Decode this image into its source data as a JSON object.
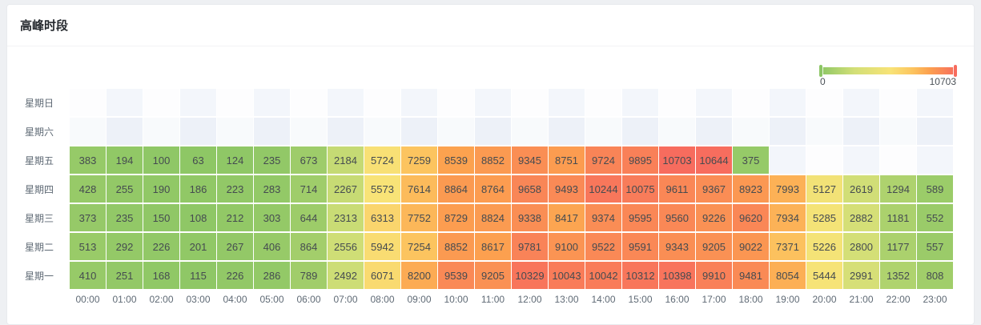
{
  "card": {
    "title": "高峰时段"
  },
  "chart_data": {
    "type": "heatmap",
    "title": "高峰时段",
    "x_labels": [
      "00:00",
      "01:00",
      "02:00",
      "03:00",
      "04:00",
      "05:00",
      "06:00",
      "07:00",
      "08:00",
      "09:00",
      "10:00",
      "11:00",
      "12:00",
      "13:00",
      "14:00",
      "15:00",
      "16:00",
      "17:00",
      "18:00",
      "19:00",
      "20:00",
      "21:00",
      "22:00",
      "23:00"
    ],
    "y_labels_top_to_bottom": [
      "星期日",
      "星期六",
      "星期五",
      "星期四",
      "星期三",
      "星期二",
      "星期一"
    ],
    "min": 0,
    "max": 10703,
    "legend": {
      "min_label": "0",
      "max_label": "10703",
      "position": "top-right"
    },
    "gradient_stops": [
      {
        "pos": 0,
        "color": "#8cc665"
      },
      {
        "pos": 0.25,
        "color": "#d2df77"
      },
      {
        "pos": 0.52,
        "color": "#f8e377"
      },
      {
        "pos": 0.68,
        "color": "#fcc45f"
      },
      {
        "pos": 0.8,
        "color": "#fca14f"
      },
      {
        "pos": 1,
        "color": "#f76c5e"
      }
    ],
    "rows": [
      {
        "day": "星期日",
        "values": [
          null,
          null,
          null,
          null,
          null,
          null,
          null,
          null,
          null,
          null,
          null,
          null,
          null,
          null,
          null,
          null,
          null,
          null,
          null,
          null,
          null,
          null,
          null,
          null
        ]
      },
      {
        "day": "星期六",
        "values": [
          null,
          null,
          null,
          null,
          null,
          null,
          null,
          null,
          null,
          null,
          null,
          null,
          null,
          null,
          null,
          null,
          null,
          null,
          null,
          null,
          null,
          null,
          null,
          null
        ]
      },
      {
        "day": "星期五",
        "values": [
          383,
          194,
          100,
          63,
          124,
          235,
          673,
          2184,
          5724,
          7259,
          8539,
          8852,
          9345,
          8751,
          9724,
          9895,
          10703,
          10644,
          375,
          null,
          null,
          null,
          null,
          null
        ]
      },
      {
        "day": "星期四",
        "values": [
          428,
          255,
          190,
          186,
          223,
          283,
          714,
          2267,
          5573,
          7614,
          8864,
          8764,
          9658,
          9493,
          10244,
          10075,
          9611,
          9367,
          8923,
          7993,
          5127,
          2619,
          1294,
          589
        ]
      },
      {
        "day": "星期三",
        "values": [
          373,
          235,
          150,
          108,
          212,
          303,
          644,
          2313,
          6313,
          7752,
          8729,
          8824,
          9338,
          8417,
          9374,
          9595,
          9560,
          9226,
          9620,
          7934,
          5285,
          2882,
          1181,
          552
        ]
      },
      {
        "day": "星期二",
        "values": [
          513,
          292,
          226,
          201,
          267,
          406,
          864,
          2556,
          5942,
          7254,
          8852,
          8617,
          9781,
          9100,
          9522,
          9591,
          9343,
          9205,
          9022,
          7371,
          5226,
          2800,
          1177,
          557
        ]
      },
      {
        "day": "星期一",
        "values": [
          410,
          251,
          168,
          115,
          226,
          286,
          789,
          2492,
          6071,
          8200,
          9539,
          9205,
          10329,
          10043,
          10042,
          10312,
          10398,
          9910,
          9481,
          8054,
          5444,
          2991,
          1352,
          808
        ]
      }
    ]
  }
}
